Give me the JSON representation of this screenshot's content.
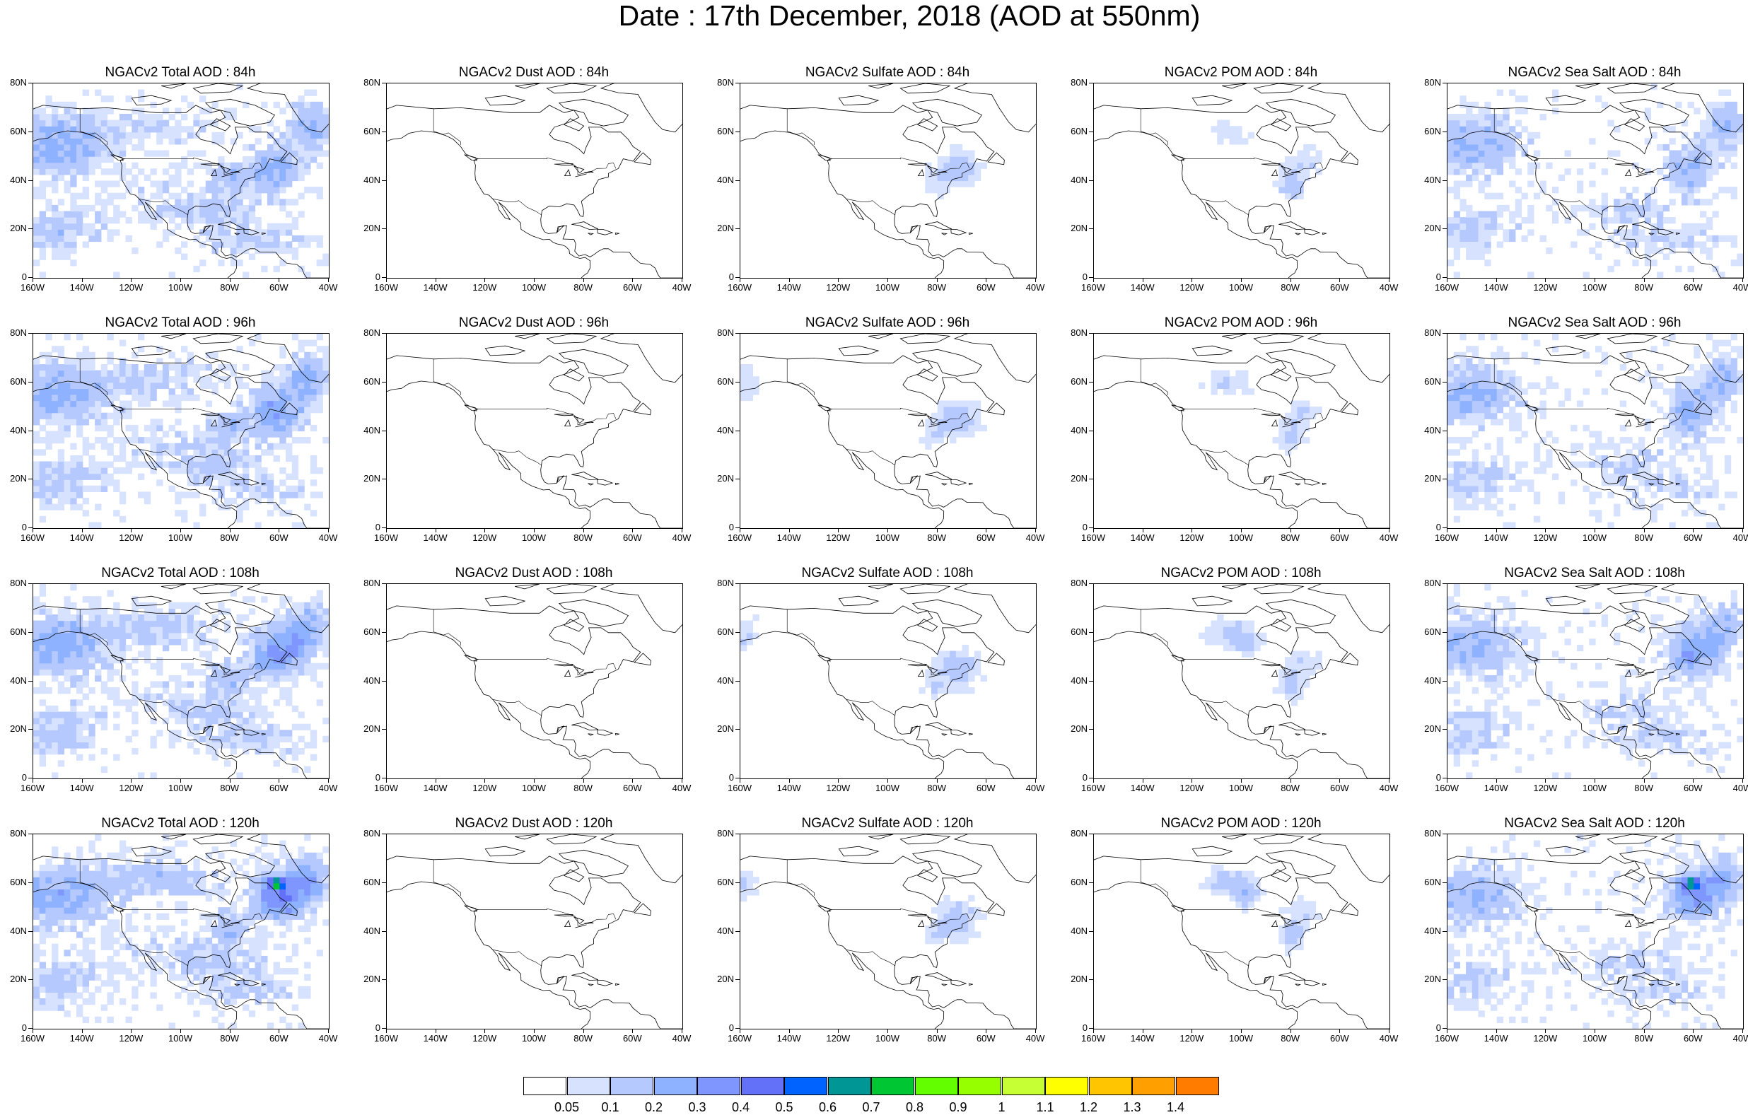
{
  "title": "Date : 17th December, 2018 (AOD at 550nm)",
  "lat_labels": [
    "80N",
    "60N",
    "40N",
    "20N",
    "0"
  ],
  "lon_labels": [
    "160W",
    "140W",
    "120W",
    "100W",
    "80W",
    "60W",
    "40W"
  ],
  "colorbar": {
    "colors": [
      "#ffffff",
      "#d6e2ff",
      "#b5c9ff",
      "#8eb2ff",
      "#7f96ff",
      "#6370f8",
      "#0063ff",
      "#009696",
      "#00c633",
      "#63ff00",
      "#96ff00",
      "#c6ff33",
      "#ffff00",
      "#ffc600",
      "#ffa000",
      "#ff7c00",
      "#ff1900"
    ],
    "labels": [
      "0.05",
      "0.1",
      "0.2",
      "0.3",
      "0.4",
      "0.5",
      "0.6",
      "0.7",
      "0.8",
      "0.9",
      "1",
      "1.1",
      "1.2",
      "1.3",
      "1.4"
    ]
  },
  "panels": [
    {
      "title": "NGACv2 Total AOD : 84h",
      "species": "total",
      "hour": 84
    },
    {
      "title": "NGACv2 Dust AOD : 84h",
      "species": "dust",
      "hour": 84
    },
    {
      "title": "NGACv2 Sulfate AOD : 84h",
      "species": "sulfate",
      "hour": 84
    },
    {
      "title": "NGACv2 POM AOD : 84h",
      "species": "pom",
      "hour": 84
    },
    {
      "title": "NGACv2 Sea Salt AOD : 84h",
      "species": "seasalt",
      "hour": 84
    },
    {
      "title": "NGACv2 Total AOD : 96h",
      "species": "total",
      "hour": 96
    },
    {
      "title": "NGACv2 Dust AOD : 96h",
      "species": "dust",
      "hour": 96
    },
    {
      "title": "NGACv2 Sulfate AOD : 96h",
      "species": "sulfate",
      "hour": 96
    },
    {
      "title": "NGACv2 POM AOD : 96h",
      "species": "pom",
      "hour": 96
    },
    {
      "title": "NGACv2 Sea Salt AOD : 96h",
      "species": "seasalt",
      "hour": 96
    },
    {
      "title": "NGACv2 Total AOD : 108h",
      "species": "total",
      "hour": 108
    },
    {
      "title": "NGACv2 Dust AOD : 108h",
      "species": "dust",
      "hour": 108
    },
    {
      "title": "NGACv2 Sulfate AOD : 108h",
      "species": "sulfate",
      "hour": 108
    },
    {
      "title": "NGACv2 POM AOD : 108h",
      "species": "pom",
      "hour": 108
    },
    {
      "title": "NGACv2 Sea Salt AOD : 108h",
      "species": "seasalt",
      "hour": 108
    },
    {
      "title": "NGACv2 Total AOD : 120h",
      "species": "total",
      "hour": 120
    },
    {
      "title": "NGACv2 Dust AOD : 120h",
      "species": "dust",
      "hour": 120
    },
    {
      "title": "NGACv2 Sulfate AOD : 120h",
      "species": "sulfate",
      "hour": 120
    },
    {
      "title": "NGACv2 POM AOD : 120h",
      "species": "pom",
      "hour": 120
    },
    {
      "title": "NGACv2 Sea Salt  AOD : 120h",
      "species": "seasalt",
      "hour": 120
    }
  ]
}
